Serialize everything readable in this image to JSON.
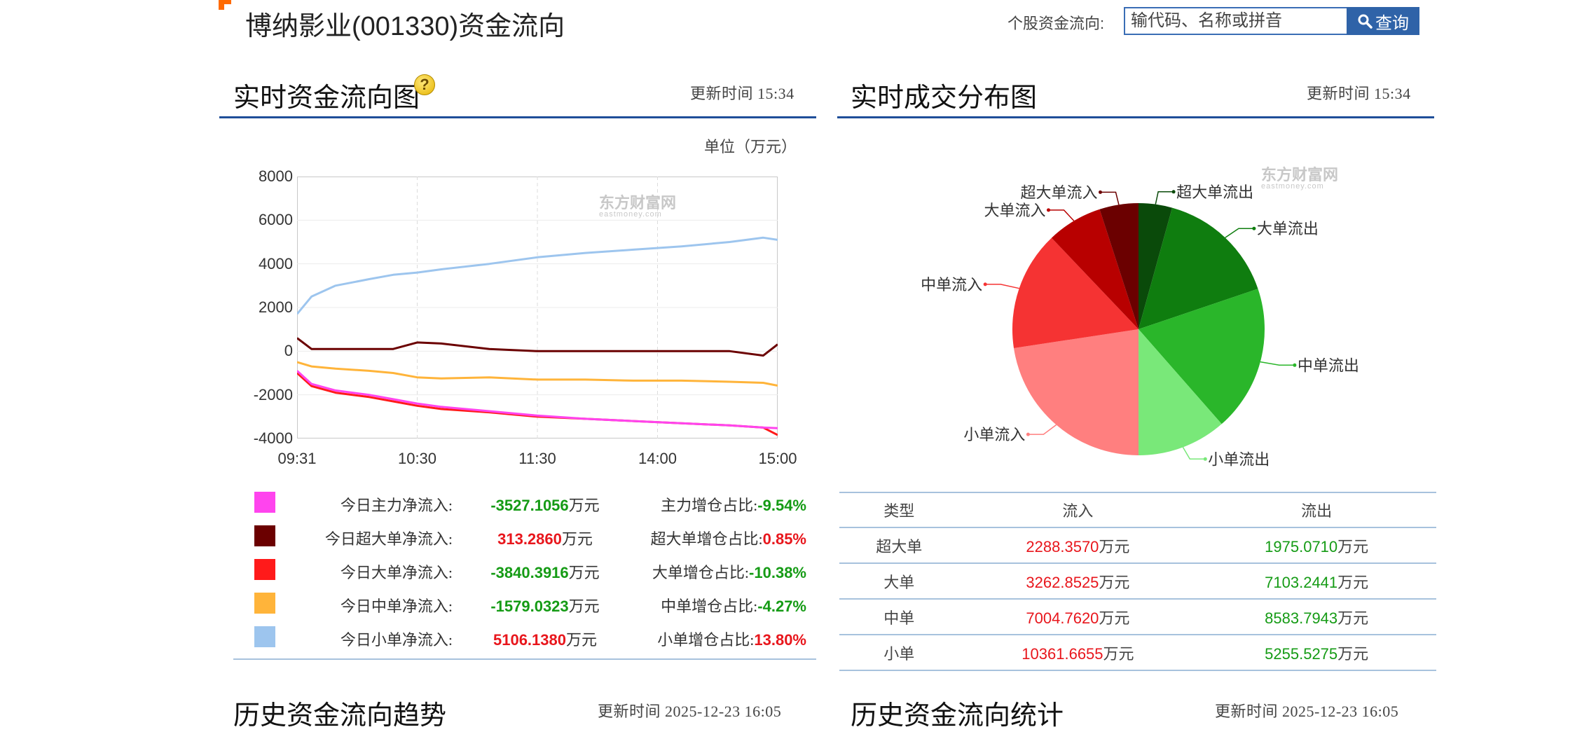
{
  "header": {
    "title": "博纳影业(001330)资金流向",
    "search_label": "个股资金流向:",
    "search_placeholder": "输代码、名称或拼音",
    "search_button": "查询"
  },
  "realtime_flow": {
    "title": "实时资金流向图",
    "update_time": "更新时间  15:34",
    "unit": "单位（万元）",
    "watermark": "东方财富网",
    "watermark_sub": "eastmoney.com",
    "legend": [
      {
        "label": "今日主力净流入:",
        "value": "-3527.1056",
        "unit": "万元",
        "ratio_label": "主力增仓占比:",
        "ratio": "-9.54%",
        "color": "#ff44ee",
        "value_class": "green",
        "ratio_class": "green"
      },
      {
        "label": "今日超大单净流入:",
        "value": "313.2860",
        "unit": "万元",
        "ratio_label": "超大单增仓占比:",
        "ratio": "0.85%",
        "color": "#6b0000",
        "value_class": "red",
        "ratio_class": "red"
      },
      {
        "label": "今日大单净流入:",
        "value": "-3840.3916",
        "unit": "万元",
        "ratio_label": "大单增仓占比:",
        "ratio": "-10.38%",
        "color": "#ff1a1a",
        "value_class": "green",
        "ratio_class": "green"
      },
      {
        "label": "今日中单净流入:",
        "value": "-1579.0323",
        "unit": "万元",
        "ratio_label": "中单增仓占比:",
        "ratio": "-4.27%",
        "color": "#ffb43a",
        "value_class": "green",
        "ratio_class": "green"
      },
      {
        "label": "今日小单净流入:",
        "value": "5106.1380",
        "unit": "万元",
        "ratio_label": "小单增仓占比:",
        "ratio": "13.80%",
        "color": "#9dc5ee",
        "value_class": "red",
        "ratio_class": "red"
      }
    ]
  },
  "chart_data": [
    {
      "type": "line",
      "x_ticks": [
        "09:31",
        "10:30",
        "11:30",
        "14:00",
        "15:00"
      ],
      "y_ticks": [
        "8000",
        "6000",
        "4000",
        "2000",
        "0",
        "-2000",
        "-4000"
      ],
      "ylim": [
        -4000,
        8000
      ],
      "grid": true,
      "x": [
        0,
        0.03,
        0.08,
        0.15,
        0.2,
        0.25,
        0.3,
        0.4,
        0.5,
        0.6,
        0.7,
        0.8,
        0.9,
        0.97,
        1.0
      ],
      "series": [
        {
          "color": "#9dc5ee",
          "values": [
            1700,
            2500,
            3000,
            3300,
            3500,
            3600,
            3750,
            4000,
            4300,
            4500,
            4650,
            4800,
            5000,
            5200,
            5100
          ]
        },
        {
          "color": "#6b0000",
          "values": [
            600,
            100,
            100,
            100,
            100,
            400,
            350,
            100,
            0,
            0,
            0,
            0,
            0,
            -200,
            313
          ]
        },
        {
          "color": "#ffb43a",
          "values": [
            -500,
            -700,
            -800,
            -900,
            -1000,
            -1200,
            -1250,
            -1200,
            -1300,
            -1300,
            -1350,
            -1350,
            -1400,
            -1450,
            -1579
          ]
        },
        {
          "color": "#ff1a1a",
          "values": [
            -1000,
            -1600,
            -1900,
            -2100,
            -2300,
            -2500,
            -2650,
            -2800,
            -3000,
            -3100,
            -3200,
            -3300,
            -3400,
            -3500,
            -3840
          ]
        },
        {
          "color": "#ff44ee",
          "values": [
            -900,
            -1500,
            -1800,
            -2000,
            -2200,
            -2400,
            -2550,
            -2750,
            -2950,
            -3100,
            -3200,
            -3300,
            -3400,
            -3500,
            -3527
          ]
        }
      ]
    },
    {
      "type": "pie",
      "slices": [
        {
          "label": "超大单流出",
          "value": 1975.071,
          "color": "#0a4a0a"
        },
        {
          "label": "大单流出",
          "value": 7103.2441,
          "color": "#0f7d0f"
        },
        {
          "label": "中单流出",
          "value": 8583.7943,
          "color": "#2ab62a"
        },
        {
          "label": "小单流出",
          "value": 5255.5275,
          "color": "#79e879"
        },
        {
          "label": "小单流入",
          "value": 10361.6655,
          "color": "#ff7f7f"
        },
        {
          "label": "中单流入",
          "value": 7004.762,
          "color": "#f53333"
        },
        {
          "label": "大单流入",
          "value": 3262.8525,
          "color": "#b80000"
        },
        {
          "label": "超大单流入",
          "value": 2288.357,
          "color": "#6b0000"
        }
      ]
    }
  ],
  "distribution": {
    "title": "实时成交分布图",
    "update_time": "更新时间  15:34",
    "watermark": "东方财富网",
    "watermark_sub": "eastmoney.com",
    "table": {
      "headers": [
        "类型",
        "流入",
        "流出"
      ],
      "unit": "万元",
      "rows": [
        {
          "type": "超大单",
          "in": "2288.3570",
          "out": "1975.0710"
        },
        {
          "type": "大单",
          "in": "3262.8525",
          "out": "7103.2441"
        },
        {
          "type": "中单",
          "in": "7004.7620",
          "out": "8583.7943"
        },
        {
          "type": "小单",
          "in": "10361.6655",
          "out": "5255.5275"
        }
      ]
    }
  },
  "history_trend": {
    "title": "历史资金流向趋势",
    "update_time": "更新时间  2025-12-23  16:05"
  },
  "history_stats": {
    "title": "历史资金流向统计",
    "update_time": "更新时间  2025-12-23  16:05"
  }
}
